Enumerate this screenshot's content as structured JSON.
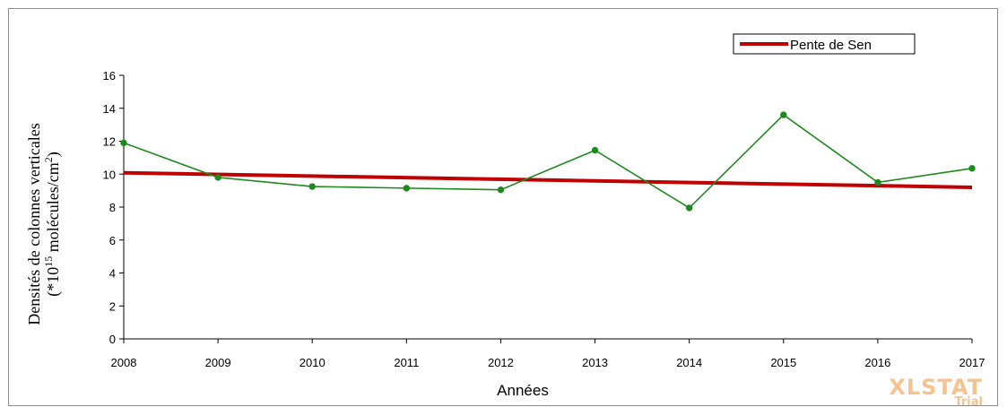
{
  "chart_data": {
    "type": "line",
    "x": [
      "2008",
      "2009",
      "2010",
      "2011",
      "2012",
      "2013",
      "2014",
      "2015",
      "2016",
      "2017"
    ],
    "series": [
      {
        "values": [
          11.9,
          9.8,
          9.25,
          9.15,
          9.05,
          11.45,
          7.95,
          13.6,
          9.5,
          10.35
        ],
        "color": "#1e8a1e",
        "marker": "circle"
      },
      {
        "name": "Pente de Sen",
        "start": 10.08,
        "end": 9.2,
        "color": "#c00000"
      }
    ],
    "xlabel": "Années",
    "ylabel_line1": "Densités de colonnes verticales",
    "ylabel_line2": {
      "prefix": "(*10",
      "sup1": "15",
      "middle": " molécules/cm",
      "sup2": "2",
      "suffix": ")"
    },
    "ylim": [
      0,
      16
    ],
    "yticks": [
      "0",
      "2",
      "4",
      "6",
      "8",
      "10",
      "12",
      "14",
      "16"
    ],
    "grid": false,
    "legend_position": "top-right"
  },
  "watermark": {
    "line1": "XLSTAT",
    "line2": "Trial"
  }
}
